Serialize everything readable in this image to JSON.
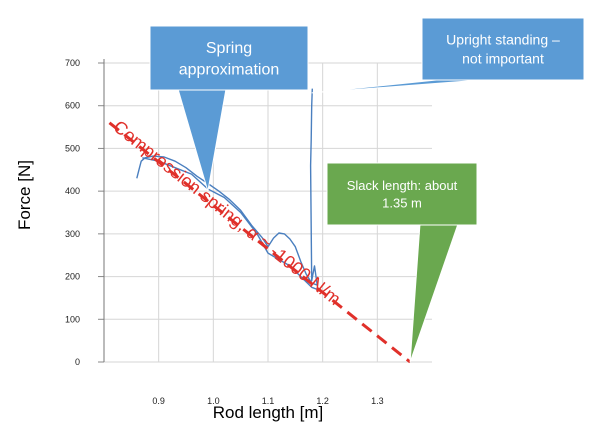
{
  "chart_data": {
    "type": "line",
    "xlabel": "Rod length [m]",
    "ylabel": "Force [N]",
    "xlim": [
      0.8,
      1.4
    ],
    "ylim": [
      0,
      700
    ],
    "x_ticks": [
      "0.9",
      "1.0",
      "1.1",
      "1.2",
      "1.3"
    ],
    "y_ticks": [
      "0",
      "100",
      "200",
      "300",
      "400",
      "500",
      "600",
      "700"
    ],
    "grid": true,
    "series": [
      {
        "name": "",
        "color": "#4a7fbf",
        "points": [
          [
            0.86,
            430
          ],
          [
            0.865,
            455
          ],
          [
            0.868,
            470
          ],
          [
            0.875,
            478
          ],
          [
            0.89,
            482
          ],
          [
            0.91,
            480
          ],
          [
            0.93,
            470
          ],
          [
            0.95,
            455
          ],
          [
            0.97,
            435
          ],
          [
            0.99,
            418
          ],
          [
            1.01,
            400
          ],
          [
            1.03,
            380
          ],
          [
            1.05,
            355
          ],
          [
            1.07,
            320
          ],
          [
            1.09,
            290
          ],
          [
            1.1,
            270
          ],
          [
            1.11,
            290
          ],
          [
            1.12,
            302
          ],
          [
            1.13,
            300
          ],
          [
            1.14,
            288
          ],
          [
            1.15,
            270
          ],
          [
            1.16,
            235
          ],
          [
            1.17,
            205
          ],
          [
            1.18,
            185
          ],
          [
            1.19,
            180
          ],
          [
            1.185,
            225
          ],
          [
            1.18,
            190
          ],
          [
            1.178,
            460
          ],
          [
            1.179,
            520
          ],
          [
            1.18,
            600
          ],
          [
            1.181,
            640
          ]
        ]
      },
      {
        "name": "",
        "color": "#4a7fbf",
        "points": [
          [
            0.87,
            478
          ],
          [
            0.9,
            470
          ],
          [
            0.93,
            455
          ],
          [
            0.96,
            440
          ],
          [
            0.99,
            405
          ],
          [
            1.02,
            385
          ],
          [
            1.05,
            350
          ],
          [
            1.08,
            300
          ],
          [
            1.1,
            255
          ],
          [
            1.12,
            240
          ],
          [
            1.14,
            225
          ],
          [
            1.16,
            200
          ],
          [
            1.18,
            175
          ],
          [
            1.19,
            170
          ]
        ]
      }
    ],
    "fit_line": {
      "label": "Compression spring, α ≈ -1000 N/m",
      "color": "#e0302a",
      "points": [
        [
          0.81,
          560
        ],
        [
          1.36,
          0
        ]
      ]
    },
    "annotations": [
      {
        "id": "spring-approx",
        "text_lines": [
          "Spring",
          "approximation"
        ],
        "fill": "#5b9bd5",
        "target": [
          0.99,
          400
        ]
      },
      {
        "id": "upright",
        "text_lines": [
          "Upright standing –",
          "not important"
        ],
        "fill": "#5b9bd5",
        "target": [
          1.18,
          630
        ]
      },
      {
        "id": "slack",
        "text_lines": [
          "Slack length: about",
          "1.35 m"
        ],
        "fill": "#6aa84f",
        "target": [
          1.36,
          0
        ]
      }
    ]
  }
}
